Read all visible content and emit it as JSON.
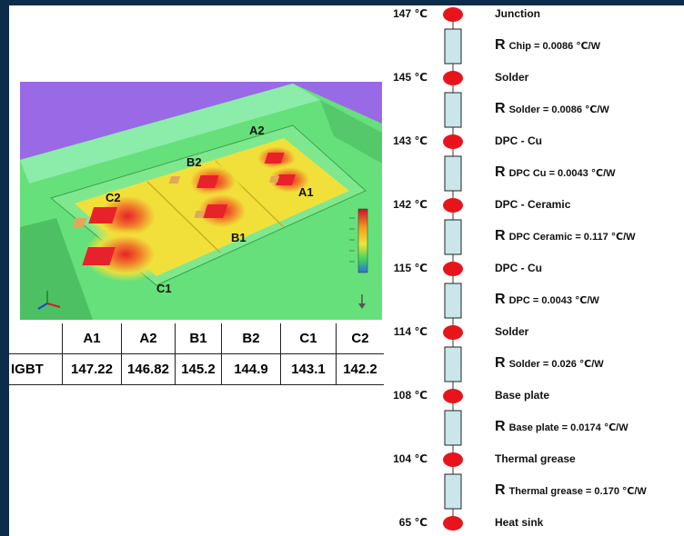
{
  "thermal_image": {
    "caption": "",
    "chip_labels": [
      "A2",
      "B2",
      "A1",
      "C2",
      "B1",
      "C1"
    ],
    "colors": {
      "background": "#9a6ae6",
      "cool": "#66e07a",
      "warm": "#f2e03a",
      "hot": "#f07a2a",
      "hottest": "#e8222a"
    }
  },
  "results_table": {
    "columns": [
      "A1",
      "A2",
      "B1",
      "B2",
      "C1",
      "C2"
    ],
    "rows": [
      {
        "label": "IGBT",
        "values": [
          "147.22",
          "146.82",
          "145.2",
          "144.9",
          "143.1",
          "142.2"
        ]
      }
    ]
  },
  "thermal_chain": {
    "node_color": "#e8141c",
    "resistor_color": "#c9e6ea",
    "nodes": [
      {
        "temp": "147 ℃",
        "name": "Junction"
      },
      {
        "temp": "145 ℃",
        "name": "Solder"
      },
      {
        "temp": "143 ℃",
        "name": "DPC - Cu"
      },
      {
        "temp": "142 ℃",
        "name": "DPC - Ceramic"
      },
      {
        "temp": "115 ℃",
        "name": "DPC - Cu"
      },
      {
        "temp": "114 ℃",
        "name": "Solder"
      },
      {
        "temp": "108 ℃",
        "name": "Base plate"
      },
      {
        "temp": "104 ℃",
        "name": "Thermal grease"
      },
      {
        "temp": "65 ℃",
        "name": "Heat sink"
      }
    ],
    "resistors": [
      {
        "symbol": "R",
        "label": "Chip = 0.0086 ℃/W"
      },
      {
        "symbol": "R",
        "label": "Solder = 0.0086 ℃/W"
      },
      {
        "symbol": "R",
        "label": "DPC Cu = 0.0043  ℃/W"
      },
      {
        "symbol": "R",
        "label": "DPC Ceramic = 0.117 ℃/W"
      },
      {
        "symbol": "R",
        "label": "DPC = 0.0043  ℃/W"
      },
      {
        "symbol": "R",
        "label": "Solder = 0.026  ℃/W"
      },
      {
        "symbol": "R",
        "label": "Base plate = 0.0174 ℃/W"
      },
      {
        "symbol": "R",
        "label": "Thermal grease = 0.170 ℃/W"
      }
    ]
  }
}
